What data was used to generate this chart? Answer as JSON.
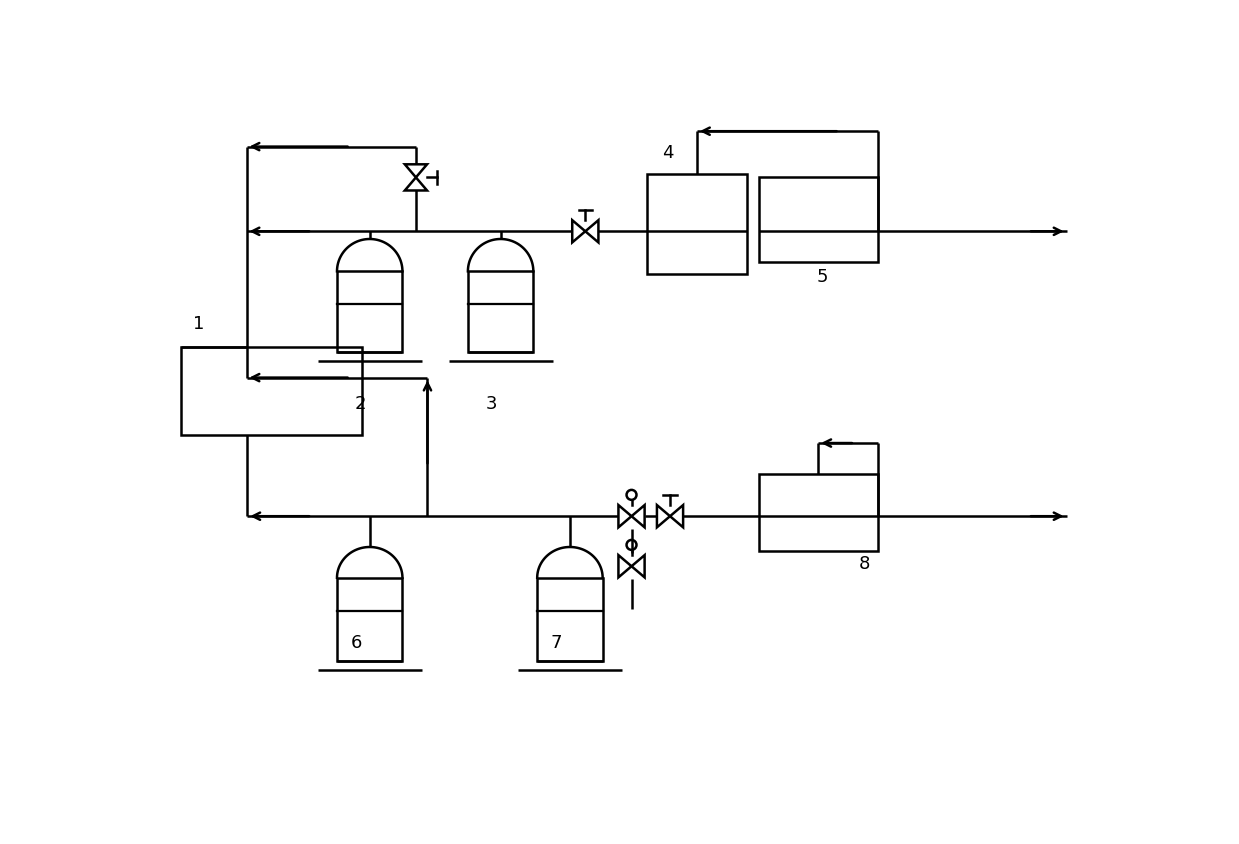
{
  "bg_color": "#ffffff",
  "line_color": "#000000",
  "lw": 1.8,
  "fig_width": 12.39,
  "fig_height": 8.45
}
